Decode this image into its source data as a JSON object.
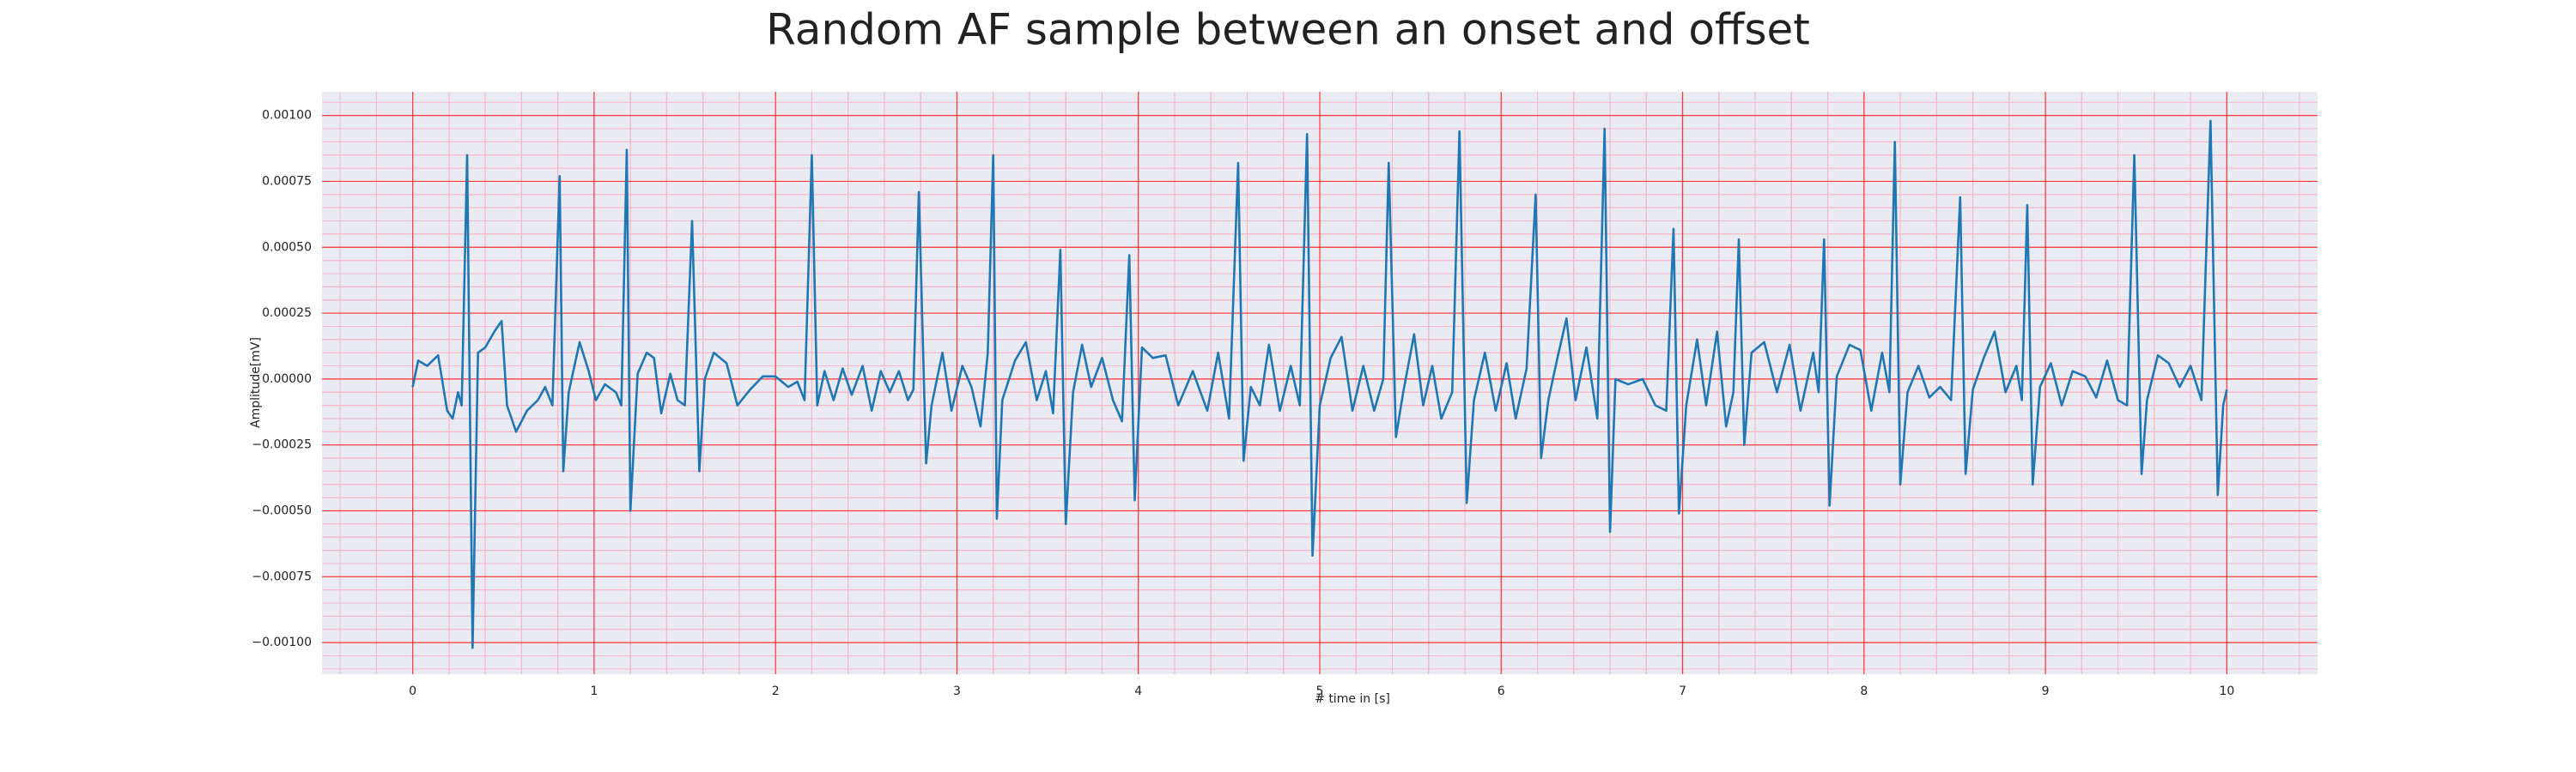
{
  "chart_data": {
    "type": "line",
    "title": "Random AF sample between an onset and offset",
    "x_label": "# time in [s]",
    "y_label": "Amplitude[mV]",
    "x": [
      0.0,
      0.03,
      0.08,
      0.14,
      0.19,
      0.22,
      0.25,
      0.27,
      0.3,
      0.33,
      0.36,
      0.4,
      0.45,
      0.49,
      0.52,
      0.57,
      0.63,
      0.69,
      0.73,
      0.77,
      0.81,
      0.83,
      0.86,
      0.92,
      0.97,
      1.01,
      1.06,
      1.12,
      1.15,
      1.18,
      1.2,
      1.24,
      1.29,
      1.33,
      1.37,
      1.42,
      1.46,
      1.5,
      1.54,
      1.58,
      1.61,
      1.66,
      1.73,
      1.79,
      1.86,
      1.93,
      2.0,
      2.07,
      2.12,
      2.16,
      2.2,
      2.23,
      2.27,
      2.32,
      2.37,
      2.42,
      2.48,
      2.53,
      2.58,
      2.63,
      2.68,
      2.73,
      2.76,
      2.79,
      2.83,
      2.86,
      2.92,
      2.97,
      3.03,
      3.08,
      3.13,
      3.17,
      3.2,
      3.22,
      3.25,
      3.32,
      3.38,
      3.44,
      3.49,
      3.53,
      3.57,
      3.6,
      3.64,
      3.69,
      3.74,
      3.8,
      3.86,
      3.91,
      3.95,
      3.98,
      4.02,
      4.08,
      4.15,
      4.22,
      4.3,
      4.38,
      4.44,
      4.5,
      4.55,
      4.58,
      4.62,
      4.67,
      4.72,
      4.78,
      4.84,
      4.89,
      4.93,
      4.96,
      5.0,
      5.06,
      5.12,
      5.18,
      5.24,
      5.3,
      5.35,
      5.38,
      5.42,
      5.46,
      5.52,
      5.57,
      5.62,
      5.67,
      5.73,
      5.77,
      5.81,
      5.85,
      5.91,
      5.97,
      6.03,
      6.08,
      6.14,
      6.19,
      6.22,
      6.26,
      6.31,
      6.36,
      6.41,
      6.47,
      6.53,
      6.57,
      6.6,
      6.63,
      6.7,
      6.78,
      6.85,
      6.91,
      6.95,
      6.98,
      7.02,
      7.08,
      7.13,
      7.19,
      7.24,
      7.28,
      7.31,
      7.34,
      7.38,
      7.45,
      7.52,
      7.59,
      7.65,
      7.72,
      7.75,
      7.78,
      7.81,
      7.85,
      7.92,
      7.98,
      8.04,
      8.1,
      8.14,
      8.17,
      8.2,
      8.24,
      8.3,
      8.36,
      8.42,
      8.48,
      8.53,
      8.56,
      8.6,
      8.66,
      8.72,
      8.78,
      8.84,
      8.87,
      8.9,
      8.93,
      8.97,
      9.03,
      9.09,
      9.15,
      9.22,
      9.28,
      9.34,
      9.4,
      9.45,
      9.49,
      9.53,
      9.56,
      9.62,
      9.68,
      9.74,
      9.8,
      9.86,
      9.91,
      9.95,
      9.98,
      10.0
    ],
    "series": [
      {
        "color": "#1f77b4",
        "values": [
          -3e-05,
          7e-05,
          5e-05,
          9e-05,
          -0.00012,
          -0.00015,
          -5e-05,
          -0.0001,
          0.00085,
          -0.00102,
          0.0001,
          0.00012,
          0.00018,
          0.00022,
          -0.0001,
          -0.0002,
          -0.00012,
          -8e-05,
          -3e-05,
          -0.0001,
          0.00077,
          -0.00035,
          -5e-05,
          0.00014,
          3e-05,
          -8e-05,
          -2e-05,
          -5e-05,
          -0.0001,
          0.00087,
          -0.0005,
          2e-05,
          0.0001,
          8e-05,
          -0.00013,
          2e-05,
          -8e-05,
          -0.0001,
          0.0006,
          -0.00035,
          0,
          0.0001,
          6e-05,
          -0.0001,
          -4e-05,
          1e-05,
          1e-05,
          -3e-05,
          -1e-05,
          -8e-05,
          0.00085,
          -0.0001,
          3e-05,
          -8e-05,
          4e-05,
          -6e-05,
          5e-05,
          -0.00012,
          3e-05,
          -5e-05,
          3e-05,
          -8e-05,
          -4e-05,
          0.00071,
          -0.00032,
          -0.0001,
          0.0001,
          -0.00012,
          5e-05,
          -3e-05,
          -0.00018,
          0.0001,
          0.00085,
          -0.00053,
          -8e-05,
          7e-05,
          0.00014,
          -8e-05,
          3e-05,
          -0.00013,
          0.00049,
          -0.00055,
          -5e-05,
          0.00013,
          -3e-05,
          8e-05,
          -8e-05,
          -0.00016,
          0.00047,
          -0.00046,
          0.00012,
          8e-05,
          9e-05,
          -0.0001,
          3e-05,
          -0.00012,
          0.0001,
          -0.00015,
          0.00082,
          -0.00031,
          -3e-05,
          -0.0001,
          0.00013,
          -0.00012,
          5e-05,
          -0.0001,
          0.00093,
          -0.00067,
          -0.0001,
          8e-05,
          0.00016,
          -0.00012,
          5e-05,
          -0.00012,
          0,
          0.00082,
          -0.00022,
          -5e-05,
          0.00017,
          -0.0001,
          5e-05,
          -0.00015,
          -5e-05,
          0.00094,
          -0.00047,
          -8e-05,
          0.0001,
          -0.00012,
          6e-05,
          -0.00015,
          4e-05,
          0.0007,
          -0.0003,
          -8e-05,
          8e-05,
          0.00023,
          -8e-05,
          0.00012,
          -0.00015,
          0.00095,
          -0.00058,
          0,
          -2e-05,
          0,
          -0.0001,
          -0.00012,
          0.00057,
          -0.00051,
          -0.0001,
          0.00015,
          -0.0001,
          0.00018,
          -0.00018,
          -5e-05,
          0.00053,
          -0.00025,
          0.0001,
          0.00014,
          -5e-05,
          0.00013,
          -0.00012,
          0.0001,
          -5e-05,
          0.00053,
          -0.00048,
          1e-05,
          0.00013,
          0.00011,
          -0.00012,
          0.0001,
          -5e-05,
          0.0009,
          -0.0004,
          -5e-05,
          5e-05,
          -7e-05,
          -3e-05,
          -8e-05,
          0.00069,
          -0.00036,
          -4e-05,
          8e-05,
          0.00018,
          -5e-05,
          5e-05,
          -8e-05,
          0.00066,
          -0.0004,
          -3e-05,
          6e-05,
          -0.0001,
          3e-05,
          1e-05,
          -7e-05,
          7e-05,
          -8e-05,
          -0.0001,
          0.00085,
          -0.00036,
          -8e-05,
          9e-05,
          6e-05,
          -3e-05,
          5e-05,
          -8e-05,
          0.00098,
          -0.00044,
          -0.0001,
          -4e-05
        ]
      }
    ],
    "xlim": [
      -0.5,
      10.5
    ],
    "xticks": [
      0,
      1,
      2,
      3,
      4,
      5,
      6,
      7,
      8,
      9,
      10
    ],
    "ylim": [
      -0.00112,
      0.00109
    ],
    "yticks": [
      {
        "value": -0.001,
        "label": "−0.00100"
      },
      {
        "value": -0.00075,
        "label": "−0.00075"
      },
      {
        "value": -0.0005,
        "label": "−0.00050"
      },
      {
        "value": -0.00025,
        "label": "−0.00025"
      },
      {
        "value": 0,
        "label": "0.00000"
      },
      {
        "value": 0.00025,
        "label": "0.00025"
      },
      {
        "value": 0.0005,
        "label": "0.00050"
      },
      {
        "value": 0.00075,
        "label": "0.00075"
      },
      {
        "value": 0.001,
        "label": "0.00100"
      }
    ],
    "grid": true,
    "minor_grid": true,
    "grid_color": "#ff0000",
    "background": "#eaeaf2"
  }
}
